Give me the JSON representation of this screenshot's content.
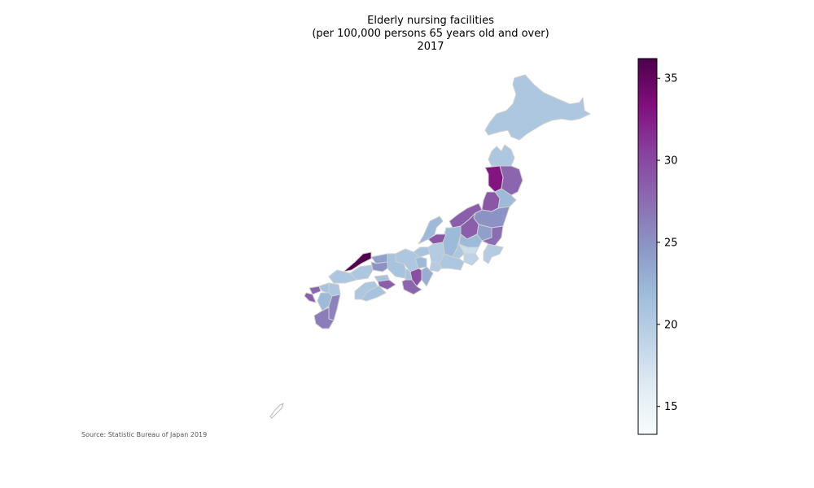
{
  "chart_data": {
    "type": "choropleth",
    "title_lines": [
      "Elderly nursing facilities",
      "(per 100,000 persons 65 years old and over)",
      "2017"
    ],
    "source": "Source: Statistic Bureau of Japan 2019",
    "colormap": "BuPu",
    "colorbar": {
      "range": [
        13.3,
        36.2
      ],
      "ticks": [
        15,
        20,
        25,
        30,
        35
      ],
      "colors": [
        "#f7fcfd",
        "#e0ecf4",
        "#bfd3e6",
        "#9ebcda",
        "#8c96c6",
        "#8c6bb1",
        "#88419d",
        "#810f7c",
        "#4d004b"
      ]
    },
    "prefectures": [
      {
        "name": "Hokkaido",
        "value": 20.5
      },
      {
        "name": "Aomori",
        "value": 20.5
      },
      {
        "name": "Iwate",
        "value": 28.0
      },
      {
        "name": "Akita",
        "value": 33.0
      },
      {
        "name": "Miyagi",
        "value": 22.0
      },
      {
        "name": "Yamagata",
        "value": 29.0
      },
      {
        "name": "Fukushima",
        "value": 25.0
      },
      {
        "name": "Niigata",
        "value": 28.5
      },
      {
        "name": "Tochigi",
        "value": 24.0
      },
      {
        "name": "Ibaraki",
        "value": 27.5
      },
      {
        "name": "Gunma",
        "value": 28.5
      },
      {
        "name": "Saitama",
        "value": 22.0
      },
      {
        "name": "Chiba",
        "value": 20.0
      },
      {
        "name": "Tokyo",
        "value": 18.0
      },
      {
        "name": "Kanagawa",
        "value": 19.0
      },
      {
        "name": "Nagano",
        "value": 22.0
      },
      {
        "name": "Yamanashi",
        "value": 20.5
      },
      {
        "name": "Toyama",
        "value": 29.0
      },
      {
        "name": "Ishikawa",
        "value": 22.0
      },
      {
        "name": "Fukui",
        "value": 21.0
      },
      {
        "name": "Gifu",
        "value": 20.0
      },
      {
        "name": "Shizuoka",
        "value": 20.5
      },
      {
        "name": "Aichi",
        "value": 20.0
      },
      {
        "name": "Mie",
        "value": 23.0
      },
      {
        "name": "Shiga",
        "value": 22.0
      },
      {
        "name": "Kyoto",
        "value": 20.5
      },
      {
        "name": "Nara",
        "value": 29.5
      },
      {
        "name": "Wakayama",
        "value": 28.0
      },
      {
        "name": "Osaka",
        "value": 21.0
      },
      {
        "name": "Hyogo",
        "value": 21.0
      },
      {
        "name": "Tottori",
        "value": 24.0
      },
      {
        "name": "Shimane",
        "value": 36.0
      },
      {
        "name": "Okayama",
        "value": 25.0
      },
      {
        "name": "Hiroshima",
        "value": 20.5
      },
      {
        "name": "Yamaguchi",
        "value": 20.5
      },
      {
        "name": "Tokushima",
        "value": 28.5
      },
      {
        "name": "Kagawa",
        "value": 21.0
      },
      {
        "name": "Ehime",
        "value": 20.5
      },
      {
        "name": "Kochi",
        "value": 21.0
      },
      {
        "name": "Fukuoka",
        "value": 21.0
      },
      {
        "name": "Saga",
        "value": 28.0
      },
      {
        "name": "Nagasaki",
        "value": 28.5
      },
      {
        "name": "Kumamoto",
        "value": 22.0
      },
      {
        "name": "Oita",
        "value": 20.5
      },
      {
        "name": "Miyazaki",
        "value": 26.0
      },
      {
        "name": "Kagoshima",
        "value": 26.5
      },
      {
        "name": "Okinawa",
        "value": 13.3
      }
    ]
  }
}
